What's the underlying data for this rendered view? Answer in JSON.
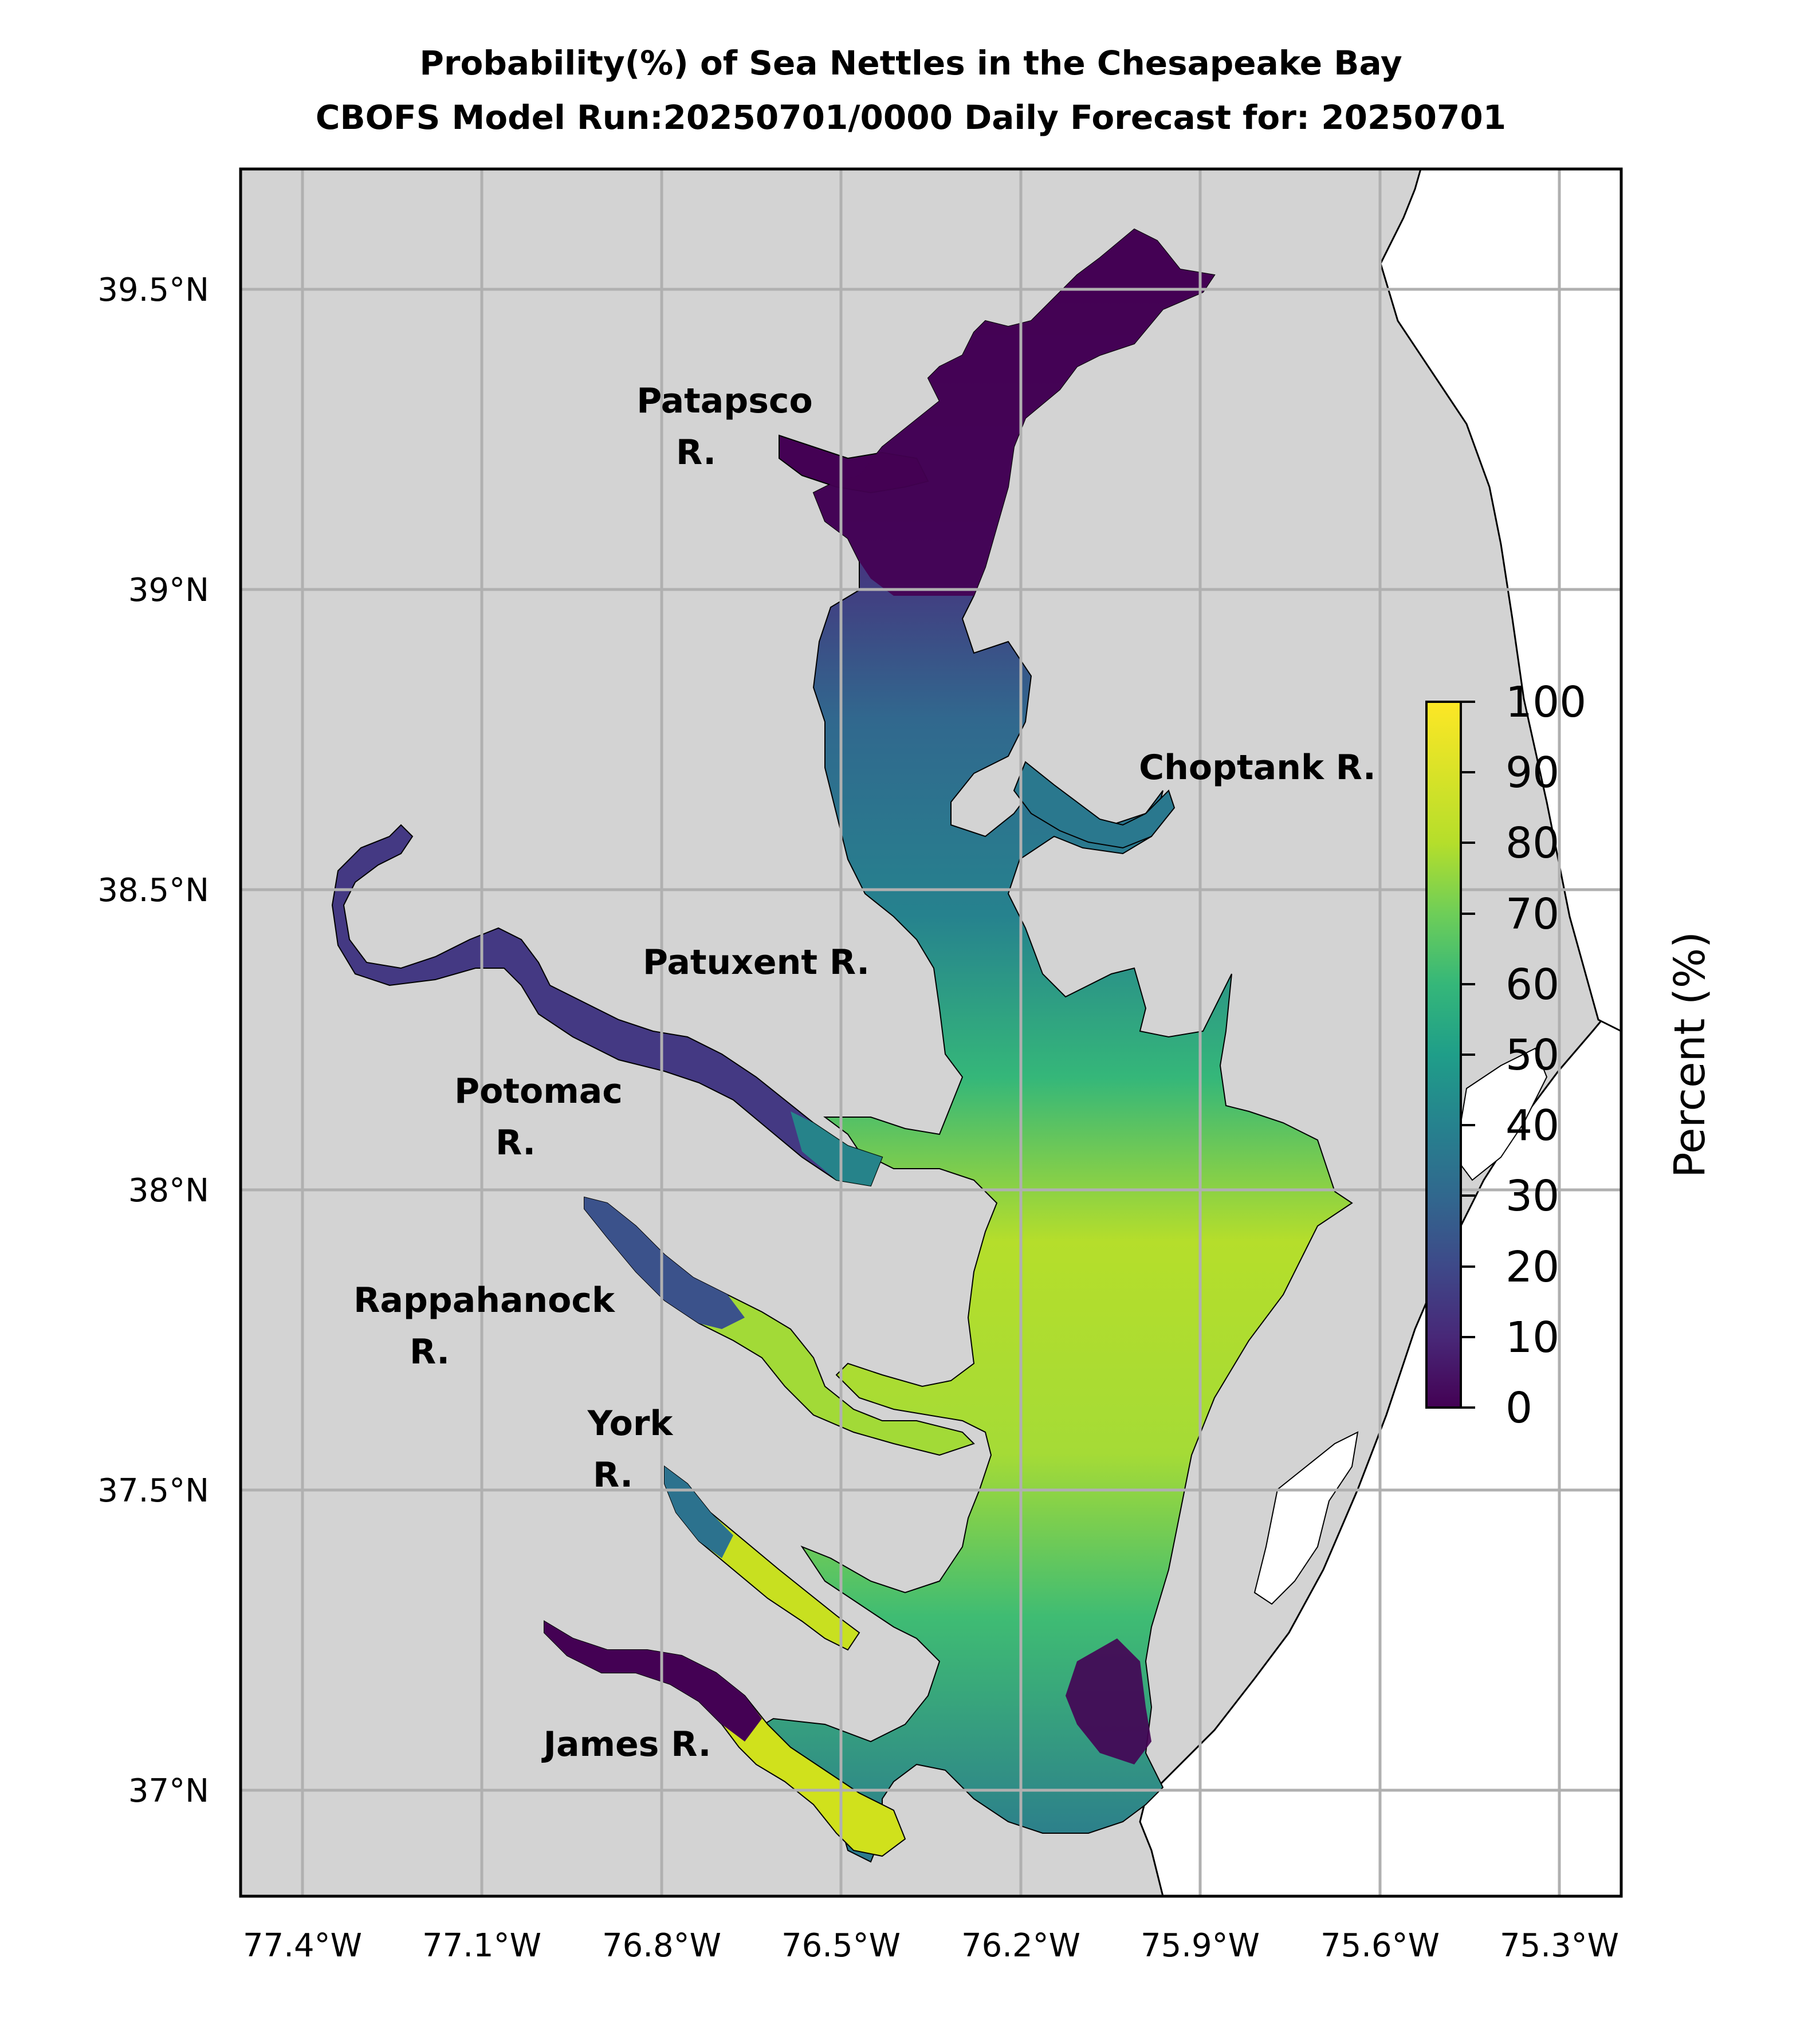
{
  "title": {
    "line1": "Probability(%) of Sea Nettles in the Chesapeake Bay",
    "line2": "CBOFS Model Run:20250701/0000 Daily Forecast for: 20250701"
  },
  "map": {
    "lon_ticks": [
      "77.4°W",
      "77.1°W",
      "76.8°W",
      "76.5°W",
      "76.2°W",
      "75.9°W",
      "75.6°W",
      "75.3°W"
    ],
    "lat_ticks": [
      "39.5°N",
      "39°N",
      "38.5°N",
      "38°N",
      "37.5°N",
      "37°N"
    ],
    "land_color": "#d3d3d3",
    "ocean_color": "#ffffff",
    "grid_color": "#b0b0b0",
    "rivers": [
      {
        "lines": [
          "Patapsco",
          "R."
        ]
      },
      {
        "lines": [
          "Choptank R."
        ]
      },
      {
        "lines": [
          "Patuxent R."
        ]
      },
      {
        "lines": [
          "Potomac",
          "R."
        ]
      },
      {
        "lines": [
          "Rappahanock",
          "R."
        ]
      },
      {
        "lines": [
          "York",
          "R."
        ]
      },
      {
        "lines": [
          "James R."
        ]
      }
    ]
  },
  "colorbar": {
    "label": "Percent (%)",
    "ticks": [
      "0",
      "10",
      "20",
      "30",
      "40",
      "50",
      "60",
      "70",
      "80",
      "90",
      "100"
    ],
    "colormap": [
      "#440154",
      "#482878",
      "#3e4989",
      "#31688e",
      "#26828e",
      "#1f9e89",
      "#35b779",
      "#6ece58",
      "#b5de2b",
      "#fde725"
    ]
  }
}
